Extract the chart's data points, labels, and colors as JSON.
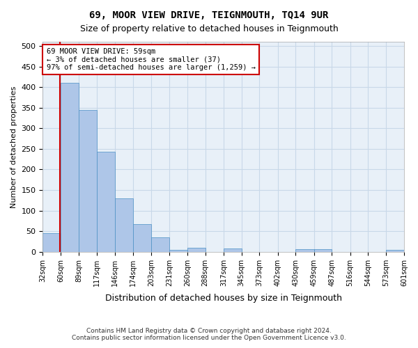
{
  "title": "69, MOOR VIEW DRIVE, TEIGNMOUTH, TQ14 9UR",
  "subtitle": "Size of property relative to detached houses in Teignmouth",
  "xlabel": "Distribution of detached houses by size in Teignmouth",
  "ylabel": "Number of detached properties",
  "footer_line1": "Contains HM Land Registry data © Crown copyright and database right 2024.",
  "footer_line2": "Contains public sector information licensed under the Open Government Licence v3.0.",
  "bar_edges": [
    32,
    60,
    89,
    117,
    146,
    174,
    203,
    231,
    260,
    288,
    317,
    345,
    373,
    402,
    430,
    459,
    487,
    516,
    544,
    573,
    601
  ],
  "bar_heights": [
    45,
    410,
    345,
    243,
    130,
    68,
    35,
    5,
    10,
    0,
    8,
    0,
    0,
    0,
    7,
    7,
    0,
    0,
    0,
    5
  ],
  "bar_color": "#aec6e8",
  "bar_edge_color": "#4a90c4",
  "grid_color": "#c8d8e8",
  "background_color": "#e8f0f8",
  "property_sqm": 59,
  "annotation_text_line1": "69 MOOR VIEW DRIVE: 59sqm",
  "annotation_text_line2": "← 3% of detached houses are smaller (37)",
  "annotation_text_line3": "97% of semi-detached houses are larger (1,259) →",
  "annotation_box_color": "#ffffff",
  "annotation_border_color": "#cc0000",
  "marker_line_color": "#cc0000",
  "ylim": [
    0,
    510
  ],
  "yticks": [
    0,
    50,
    100,
    150,
    200,
    250,
    300,
    350,
    400,
    450,
    500
  ]
}
